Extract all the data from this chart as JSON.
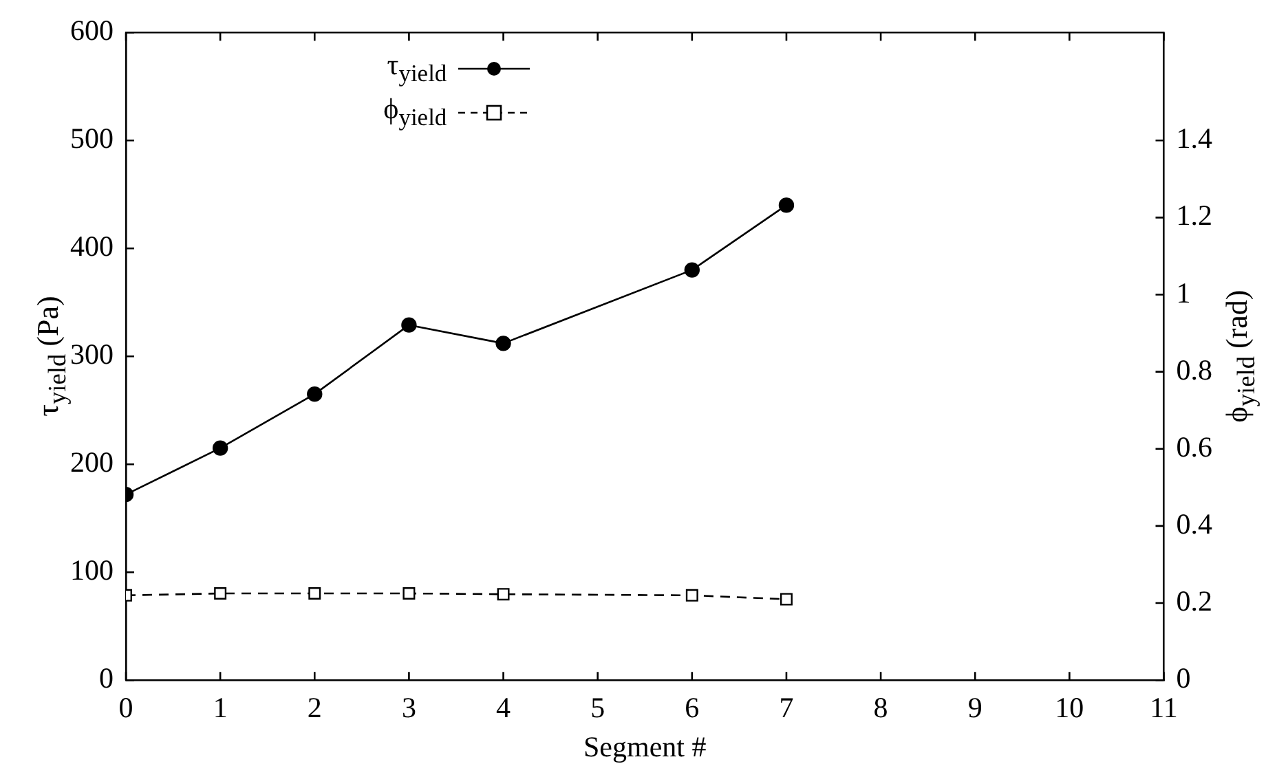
{
  "chart_data": {
    "type": "line",
    "xlabel": "Segment #",
    "ylabel": "τ$_{yield}$ (Pa)",
    "y2label": "ϕ$_{yield}$ (rad)",
    "x": [
      0,
      1,
      2,
      3,
      4,
      6,
      7
    ],
    "series": [
      {
        "name": "τ$_{yield}$",
        "color": "#000000",
        "marker": "circle",
        "line_style": "solid",
        "values": [
          172,
          215,
          265,
          329,
          312,
          380,
          440
        ]
      },
      {
        "name": "ϕ$_{yield}$",
        "color": "#000000",
        "marker": "square",
        "line_style": "dashed",
        "axis": "y2",
        "values": [
          0.22,
          0.225,
          0.225,
          0.225,
          0.223,
          0.22,
          0.21
        ]
      }
    ],
    "xlim": [
      0,
      11
    ],
    "xticks": [
      0,
      1,
      2,
      3,
      4,
      5,
      6,
      7,
      8,
      9,
      10,
      11
    ],
    "ylim": [
      0,
      600
    ],
    "yticks": [
      0,
      100,
      200,
      300,
      400,
      500,
      600
    ],
    "y2lim": [
      0,
      1.68
    ],
    "y2ticks": [
      0,
      0.2,
      0.4,
      0.6,
      0.8,
      1,
      1.2,
      1.4
    ],
    "grid": false,
    "legend": "top"
  }
}
